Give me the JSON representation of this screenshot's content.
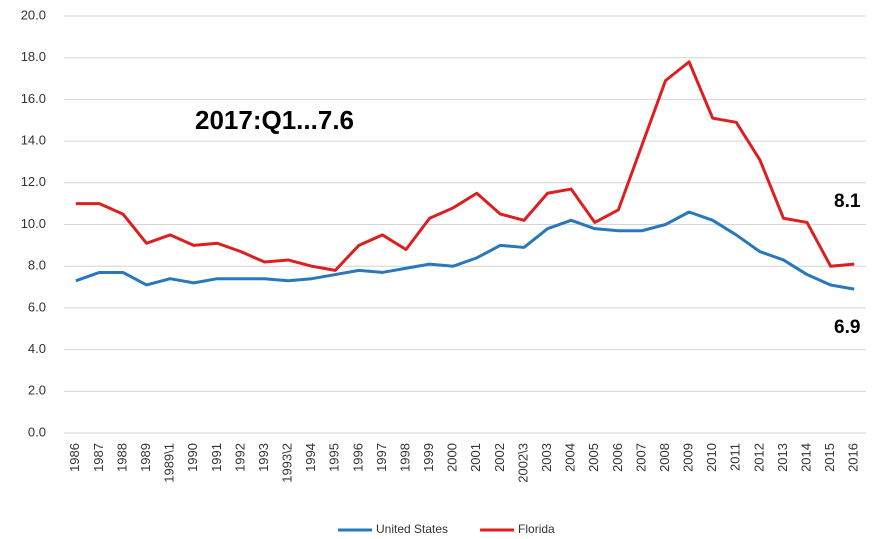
{
  "chart_data": {
    "type": "line",
    "categories": [
      "1986",
      "1987",
      "1988",
      "1989",
      "1989\\1",
      "1990",
      "1991",
      "1992",
      "1993",
      "1993\\2",
      "1994",
      "1995",
      "1996",
      "1997",
      "1998",
      "1999",
      "2000",
      "2001",
      "2002",
      "2002\\3",
      "2003",
      "2004",
      "2005",
      "2006",
      "2007",
      "2008",
      "2009",
      "2010",
      "2011",
      "2012",
      "2013",
      "2014",
      "2015",
      "2016"
    ],
    "series": [
      {
        "name": "United States",
        "color": "#2a78b9",
        "values": [
          7.3,
          7.7,
          7.7,
          7.1,
          7.4,
          7.2,
          7.4,
          7.4,
          7.4,
          7.3,
          7.4,
          7.6,
          7.8,
          7.7,
          7.9,
          8.1,
          8.0,
          8.4,
          9.0,
          8.9,
          9.8,
          10.2,
          9.8,
          9.7,
          9.7,
          10.0,
          10.6,
          10.2,
          9.5,
          8.7,
          8.3,
          7.6,
          7.1,
          6.9
        ]
      },
      {
        "name": "Florida",
        "color": "#dc1f1f",
        "values": [
          11.0,
          11.0,
          10.5,
          9.1,
          9.5,
          9.0,
          9.1,
          8.7,
          8.2,
          8.3,
          8.0,
          7.8,
          9.0,
          9.5,
          8.8,
          10.3,
          10.8,
          11.5,
          10.5,
          10.2,
          11.5,
          11.7,
          10.1,
          10.7,
          13.8,
          16.9,
          17.8,
          15.1,
          14.9,
          13.1,
          10.3,
          10.1,
          8.0,
          8.1
        ]
      }
    ],
    "ylim": [
      0,
      20
    ],
    "yticks": [
      {
        "value": 0,
        "label": "0.0"
      },
      {
        "value": 2,
        "label": "2.0"
      },
      {
        "value": 4,
        "label": "4.0"
      },
      {
        "value": 6,
        "label": "6.0"
      },
      {
        "value": 8,
        "label": "8.0"
      },
      {
        "value": 10,
        "label": "10.0"
      },
      {
        "value": 12,
        "label": "12.0"
      },
      {
        "value": 14,
        "label": "14.0"
      },
      {
        "value": 16,
        "label": "16.0"
      },
      {
        "value": 18,
        "label": "18.0"
      },
      {
        "value": 20,
        "label": "20.0"
      }
    ],
    "grid": true,
    "annotations": [
      "2017:Q1...7.6",
      "8.1",
      "6.9"
    ],
    "legend": "bottom"
  }
}
